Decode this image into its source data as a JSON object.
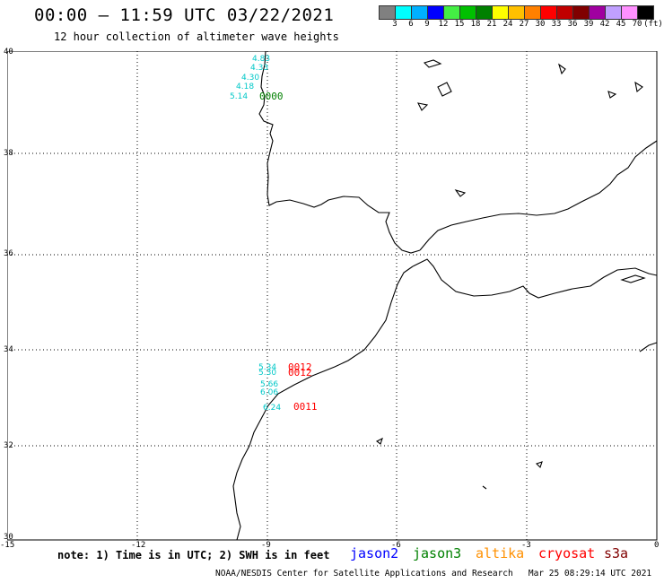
{
  "header": {
    "title": "00:00 – 11:59 UTC 03/22/2021",
    "subtitle": "12 hour collection of altimeter wave heights"
  },
  "colorbar": {
    "colors": [
      "#808080",
      "#00ffff",
      "#00b0ff",
      "#0000ff",
      "#44ee44",
      "#00c000",
      "#008000",
      "#ffff00",
      "#ffc000",
      "#ff8000",
      "#ff0000",
      "#c00000",
      "#800000",
      "#a000a0",
      "#c0a0ff",
      "#ff90ff",
      "#000000"
    ],
    "labels": [
      "3",
      "6",
      "9",
      "12",
      "15",
      "18",
      "21",
      "24",
      "27",
      "30",
      "33",
      "36",
      "39",
      "42",
      "45",
      "70",
      "(ft)"
    ]
  },
  "map": {
    "lat_ticks": [
      "40",
      "38",
      "36",
      "34",
      "32",
      "30"
    ],
    "lon_ticks": [
      "-15",
      "-12",
      "-9",
      "-6",
      "-3",
      "0"
    ],
    "wave_labels_cyan": [
      "4.83",
      "4.33",
      "4.30",
      "4.18",
      "5.14",
      "5.34",
      "5.30",
      "5.66",
      "6.06",
      "6.24"
    ],
    "times": [
      {
        "text": "0000",
        "color": "#008000"
      },
      {
        "text": "0012",
        "color": "#ff0000"
      },
      {
        "text": "0012",
        "color": "#ff0000"
      },
      {
        "text": "0011",
        "color": "#ff0000"
      }
    ]
  },
  "footer": {
    "note": "note: 1) Time is in UTC; 2) SWH is in feet",
    "satellites": [
      {
        "name": "jason2",
        "color": "#0000ff"
      },
      {
        "name": "jason3",
        "color": "#008000"
      },
      {
        "name": "altika",
        "color": "#ff9000"
      },
      {
        "name": "cryosat",
        "color": "#ff0000"
      },
      {
        "name": "s3a",
        "color": "#800000"
      }
    ],
    "credit": "NOAA/NESDIS Center for Satellite Applications and Research   Mar 25 08:29:14 UTC 2021"
  }
}
